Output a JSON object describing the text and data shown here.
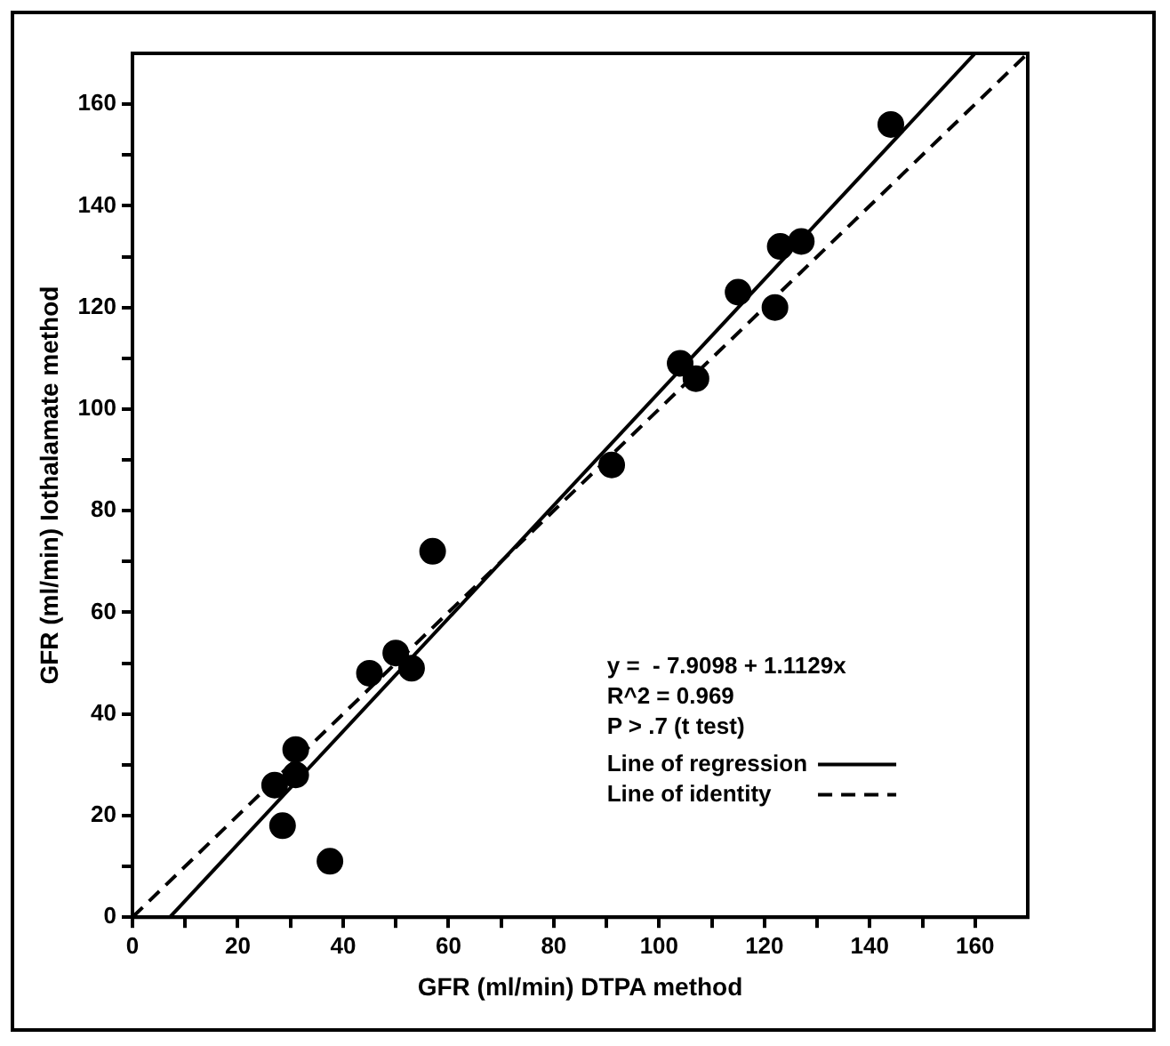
{
  "chart_data": {
    "type": "scatter",
    "xlabel": "GFR (ml/min) DTPA method",
    "ylabel": "GFR (ml/min) Iothalamate method",
    "xlim": [
      0,
      170
    ],
    "ylim": [
      0,
      170
    ],
    "xticks": [
      0,
      {
        "value": 10,
        "label": null
      },
      20,
      {
        "value": 30,
        "label": null
      },
      40,
      {
        "value": 50,
        "label": null
      },
      60,
      {
        "value": 70,
        "label": null
      },
      80,
      {
        "value": 90,
        "label": null
      },
      100,
      {
        "value": 110,
        "label": null
      },
      120,
      {
        "value": 130,
        "label": null
      },
      140,
      {
        "value": 150,
        "label": null
      },
      160
    ],
    "yticks": [
      0,
      {
        "value": 10,
        "label": null
      },
      20,
      {
        "value": 30,
        "label": null
      },
      40,
      {
        "value": 50,
        "label": null
      },
      60,
      {
        "value": 70,
        "label": null
      },
      80,
      {
        "value": 90,
        "label": null
      },
      100,
      {
        "value": 110,
        "label": null
      },
      120,
      {
        "value": 130,
        "label": null
      },
      140,
      {
        "value": 150,
        "label": null
      },
      160
    ],
    "grid": false,
    "legend": "bottom right",
    "marker": "circle",
    "annotations": [
      "y =  - 7.9098 + 1.1129x",
      "R^2 = 0.969",
      "P > .7 (t test)"
    ],
    "series": [
      {
        "color": "#000000",
        "x": [
          27,
          28.5,
          31,
          31,
          37.5,
          45,
          50,
          53,
          57,
          91,
          104,
          107,
          115,
          122,
          123,
          127,
          144
        ],
        "values": [
          26,
          18,
          33,
          28,
          11,
          48,
          52,
          49,
          72,
          89,
          109,
          106,
          123,
          120,
          132,
          133,
          156
        ]
      },
      {
        "type": "line",
        "name": "Line of regression",
        "color": "#000000",
        "marker": "none",
        "line_style": "solid",
        "x": [
          7.1,
          160
        ],
        "values": [
          0,
          170
        ]
      },
      {
        "type": "line",
        "name": "Line of identity",
        "color": "#000000",
        "marker": "none",
        "line_style": "dashed",
        "x": [
          0,
          170
        ],
        "values": [
          0,
          170
        ]
      }
    ]
  }
}
